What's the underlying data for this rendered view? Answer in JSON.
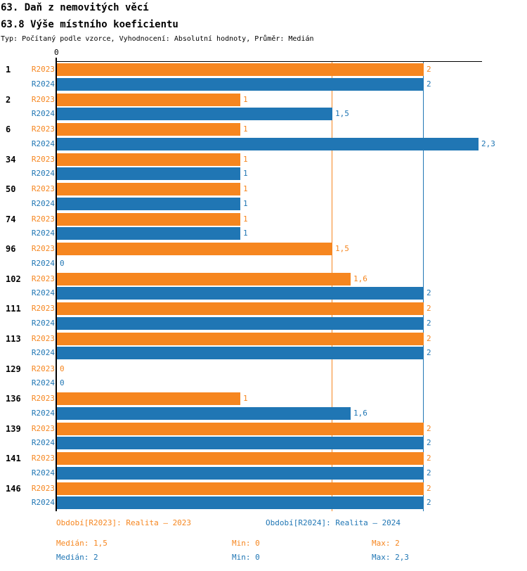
{
  "header": {
    "title": "63. Daň z nemovitých věcí",
    "subtitle": "63.8 Výše místního koeficientu",
    "meta": "Typ: Počítaný podle vzorce, Vyhodnocení: Absolutní hodnoty, Průměr: Medián"
  },
  "colors": {
    "r2023": "#F6861F",
    "r2024": "#2076B4",
    "axis": "#000000"
  },
  "axis": {
    "zero_label": "0"
  },
  "chart_data": {
    "type": "bar",
    "orientation": "horizontal",
    "title": "63.8 Výše místního koeficientu",
    "xlabel": "",
    "ylabel": "",
    "xlim": [
      0,
      2.32
    ],
    "grid": "vertical-median-lines",
    "categories": [
      "1",
      "2",
      "6",
      "34",
      "50",
      "74",
      "96",
      "102",
      "111",
      "113",
      "129",
      "136",
      "139",
      "141",
      "146"
    ],
    "series": [
      {
        "name": "R2023",
        "color": "#F6861F",
        "values": [
          2,
          1,
          1,
          1,
          1,
          1,
          1.5,
          1.6,
          2,
          2,
          0,
          1,
          2,
          2,
          2
        ],
        "labels": [
          "2",
          "1",
          "1",
          "1",
          "1",
          "1",
          "1,5",
          "1,6",
          "2",
          "2",
          "0",
          "1",
          "2",
          "2",
          "2"
        ]
      },
      {
        "name": "R2024",
        "color": "#2076B4",
        "values": [
          2,
          1.5,
          2.3,
          1,
          1,
          1,
          0,
          2,
          2,
          2,
          0,
          1.6,
          2,
          2,
          2
        ],
        "labels": [
          "2",
          "1,5",
          "2,3",
          "1",
          "1",
          "1",
          "0",
          "2",
          "2",
          "2",
          "0",
          "1,6",
          "2",
          "2",
          "2"
        ]
      }
    ],
    "gridlines": [
      {
        "series": "R2023",
        "value": 1.5,
        "color": "#F6861F"
      },
      {
        "series": "R2024",
        "value": 2,
        "color": "#2076B4"
      }
    ]
  },
  "legend": {
    "r2023": "Období[R2023]: Realita – 2023",
    "r2024": "Období[R2024]: Realita – 2024"
  },
  "stats": {
    "r2023": {
      "median": "Medián: 1,5",
      "min": "Min: 0",
      "max": "Max: 2"
    },
    "r2024": {
      "median": "Medián: 2",
      "min": "Min: 0",
      "max": "Max: 2,3"
    }
  }
}
